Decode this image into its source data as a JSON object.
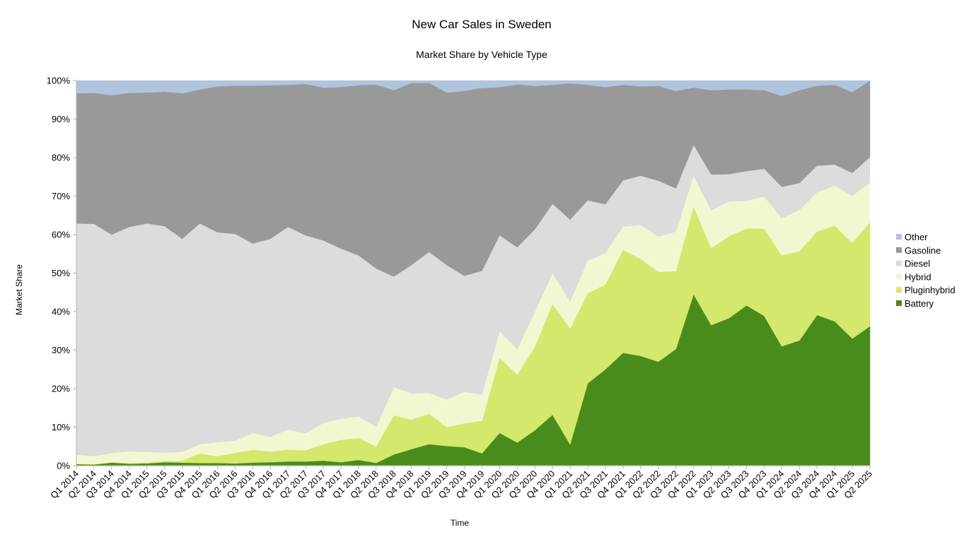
{
  "chart_data": {
    "type": "area",
    "stacked": true,
    "normalized": true,
    "title": "New Car Sales in Sweden",
    "subtitle": "Market Share by Vehicle Type",
    "xlabel": "Time",
    "ylabel": "Market Share",
    "ylim": [
      0,
      100
    ],
    "y_ticks": [
      "0%",
      "10%",
      "20%",
      "30%",
      "40%",
      "50%",
      "60%",
      "70%",
      "80%",
      "90%",
      "100%"
    ],
    "grid": false,
    "legend_position": "right",
    "categories": [
      "Q1 2014",
      "Q2 2014",
      "Q3 2014",
      "Q4 2014",
      "Q1 2015",
      "Q2 2015",
      "Q3 2015",
      "Q4 2015",
      "Q1 2016",
      "Q2 2016",
      "Q3 2016",
      "Q4 2016",
      "Q1 2017",
      "Q2 2017",
      "Q3 2017",
      "Q4 2017",
      "Q1 2018",
      "Q2 2018",
      "Q3 2018",
      "Q4 2018",
      "Q1 2019",
      "Q2 2019",
      "Q3 2019",
      "Q4 2019",
      "Q1 2020",
      "Q2 2020",
      "Q3 2020",
      "Q4 2020",
      "Q1 2021",
      "Q2 2021",
      "Q3 2021",
      "Q4 2021",
      "Q1 2022",
      "Q2 2022",
      "Q3 2022",
      "Q4 2022",
      "Q1 2023",
      "Q2 2023",
      "Q3 2023",
      "Q4 2023",
      "Q1 2024",
      "Q2 2024",
      "Q3 2024",
      "Q4 2024",
      "Q1 2025",
      "Q2 2025"
    ],
    "series": [
      {
        "name": "Battery",
        "color": "#4a8c1c",
        "values": [
          0.4,
          0.3,
          0.8,
          0.5,
          0.6,
          0.9,
          0.8,
          0.7,
          0.7,
          0.6,
          0.8,
          0.9,
          1.1,
          1.1,
          1.3,
          0.9,
          1.5,
          0.7,
          2.9,
          4.3,
          5.6,
          5.1,
          4.8,
          3.2,
          8.5,
          6.0,
          9.3,
          13.2,
          5.5,
          21.4,
          25.0,
          29.3,
          28.5,
          27.0,
          30.3,
          44.5,
          36.5,
          38.3,
          41.6,
          38.9,
          31.0,
          32.5,
          39.1,
          37.5,
          33.0,
          36.2
        ]
      },
      {
        "name": "Pluginhybrid",
        "color": "#d4e86e",
        "values": [
          0.1,
          0.1,
          0.1,
          0.2,
          0.2,
          0.3,
          0.5,
          2.5,
          1.7,
          2.8,
          3.3,
          2.8,
          3.1,
          2.9,
          4.3,
          5.8,
          5.7,
          4.3,
          10.2,
          7.7,
          7.9,
          4.9,
          6.2,
          8.5,
          19.5,
          17.7,
          21.9,
          28.8,
          30.1,
          23.4,
          22.1,
          26.8,
          25.2,
          23.3,
          20.2,
          22.8,
          20.0,
          21.3,
          20.0,
          22.7,
          23.6,
          23.2,
          21.7,
          24.8,
          24.9,
          27.0
        ]
      },
      {
        "name": "Hybrid",
        "color": "#f2f7d2",
        "values": [
          2.3,
          2.1,
          2.4,
          3.0,
          2.8,
          2.2,
          2.3,
          2.4,
          3.7,
          3.1,
          4.4,
          3.8,
          5.2,
          4.4,
          5.5,
          5.5,
          5.6,
          5.1,
          7.3,
          6.8,
          5.4,
          7.2,
          8.2,
          6.8,
          6.9,
          6.6,
          9.2,
          8.0,
          7.0,
          8.5,
          8.1,
          6.0,
          8.8,
          9.2,
          10.3,
          8.0,
          9.8,
          9.0,
          7.2,
          8.3,
          9.7,
          10.7,
          10.2,
          10.4,
          12.2,
          10.3
        ]
      },
      {
        "name": "Diesel",
        "color": "#dcdcdc",
        "values": [
          60.1,
          60.3,
          56.7,
          58.3,
          59.3,
          58.8,
          55.3,
          57.3,
          54.5,
          53.7,
          49.2,
          51.4,
          52.6,
          51.4,
          47.4,
          44.2,
          41.8,
          41.1,
          28.7,
          33.3,
          36.6,
          34.9,
          30.1,
          32.1,
          24.9,
          26.4,
          21.6,
          18.0,
          21.3,
          15.6,
          12.7,
          12.0,
          12.8,
          14.5,
          11.2,
          8.0,
          9.3,
          7.1,
          7.7,
          7.2,
          8.1,
          7.0,
          6.9,
          5.5,
          5.9,
          6.6
        ]
      },
      {
        "name": "Gasoline",
        "color": "#999999",
        "values": [
          33.8,
          34.0,
          36.2,
          34.8,
          34.0,
          34.9,
          37.8,
          34.8,
          37.9,
          38.5,
          41.0,
          39.9,
          36.9,
          39.3,
          39.7,
          41.9,
          44.2,
          47.8,
          48.4,
          47.3,
          43.9,
          44.8,
          48.0,
          47.5,
          38.5,
          42.3,
          37.6,
          30.9,
          35.4,
          30.0,
          30.4,
          24.8,
          23.2,
          24.6,
          25.3,
          14.9,
          21.9,
          22.0,
          21.2,
          20.4,
          23.6,
          24.1,
          20.8,
          20.7,
          21.0,
          19.9
        ]
      },
      {
        "name": "Other",
        "color": "#b0c4de",
        "values": [
          3.3,
          3.2,
          3.8,
          3.2,
          3.1,
          2.9,
          3.3,
          2.3,
          1.5,
          1.3,
          1.3,
          1.2,
          1.1,
          0.9,
          1.8,
          1.7,
          1.2,
          1.0,
          2.5,
          0.6,
          0.6,
          3.1,
          2.7,
          1.9,
          1.7,
          1.0,
          1.4,
          1.1,
          0.7,
          1.1,
          1.7,
          1.1,
          1.5,
          1.4,
          2.7,
          1.8,
          2.5,
          2.3,
          2.3,
          2.5,
          4.0,
          2.5,
          1.3,
          1.1,
          3.0,
          0.0
        ]
      }
    ]
  }
}
